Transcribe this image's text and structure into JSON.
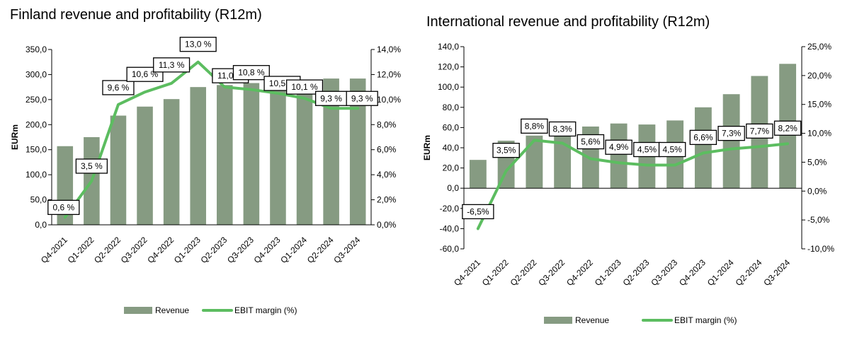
{
  "colors": {
    "bar": "#869b82",
    "line": "#5cbd60",
    "axis": "#000000"
  },
  "chart_data": [
    {
      "type": "bar",
      "title": "Finland revenue and profitability (R12m)",
      "ylabel": "EURm",
      "categories": [
        "Q4-2021",
        "Q1-2022",
        "Q2-2022",
        "Q3-2022",
        "Q4-2022",
        "Q1-2023",
        "Q2-2023",
        "Q3-2023",
        "Q4-2023",
        "Q1-2024",
        "Q2-2024",
        "Q3-2024"
      ],
      "ylim": [
        0,
        350
      ],
      "yticks": [
        "0,0",
        "50,0",
        "100,0",
        "150,0",
        "200,0",
        "250,0",
        "300,0",
        "350,0"
      ],
      "y2lim": [
        0,
        14
      ],
      "y2ticks": [
        "0,0%",
        "2,0%",
        "4,0%",
        "6,0%",
        "8,0%",
        "10,0%",
        "12,0%",
        "14,0%"
      ],
      "series": [
        {
          "name": "Revenue",
          "type": "bar",
          "axis": "left",
          "values": [
            157,
            175,
            218,
            236,
            251,
            275,
            279,
            283,
            288,
            290,
            292,
            292
          ]
        },
        {
          "name": "EBIT margin (%)",
          "type": "line",
          "axis": "right",
          "values": [
            0.6,
            3.5,
            9.6,
            10.6,
            11.3,
            13.0,
            11.0,
            10.8,
            10.5,
            10.1,
            9.3,
            9.3
          ],
          "labels": [
            "0,6 %",
            "3,5 %",
            "9,6 %",
            "10,6 %",
            "11,3 %",
            "13,0 %",
            "11,0 %",
            "10,8 %",
            "10,5 %",
            "10,1 %",
            "9,3 %",
            "9,3 %"
          ]
        }
      ],
      "legend": "bottom",
      "grid": false
    },
    {
      "type": "bar",
      "title": "International revenue and profitability (R12m)",
      "ylabel": "EURm",
      "categories": [
        "Q4-2021",
        "Q1-2022",
        "Q2-2022",
        "Q3-2022",
        "Q4-2022",
        "Q1-2023",
        "Q2-2023",
        "Q3-2023",
        "Q4-2023",
        "Q1-2024",
        "Q2-2024",
        "Q3-2024"
      ],
      "ylim": [
        -60,
        140
      ],
      "yticks": [
        "-60,0",
        "-40,0",
        "-20,0",
        "0,0",
        "20,0",
        "40,0",
        "60,0",
        "80,0",
        "100,0",
        "120,0",
        "140,0"
      ],
      "y2lim": [
        -10,
        25
      ],
      "y2ticks": [
        "-10,0%",
        "-5,0%",
        "0,0%",
        "5,0%",
        "10,0%",
        "15,0%",
        "20,0%",
        "25,0%"
      ],
      "series": [
        {
          "name": "Revenue",
          "type": "bar",
          "axis": "left",
          "values": [
            28,
            47,
            52,
            52,
            61,
            64,
            63,
            67,
            80,
            93,
            111,
            123
          ]
        },
        {
          "name": "EBIT margin (%)",
          "type": "line",
          "axis": "right",
          "values": [
            -6.5,
            3.5,
            8.8,
            8.3,
            5.6,
            4.9,
            4.5,
            4.5,
            6.6,
            7.3,
            7.7,
            8.2
          ],
          "labels": [
            "-6,5%",
            "3,5%",
            "8,8%",
            "8,3%",
            "5,6%",
            "4,9%",
            "4,5%",
            "4,5%",
            "6,6%",
            "7,3%",
            "7,7%",
            "8,2%"
          ]
        }
      ],
      "legend": "bottom",
      "grid": false
    }
  ]
}
